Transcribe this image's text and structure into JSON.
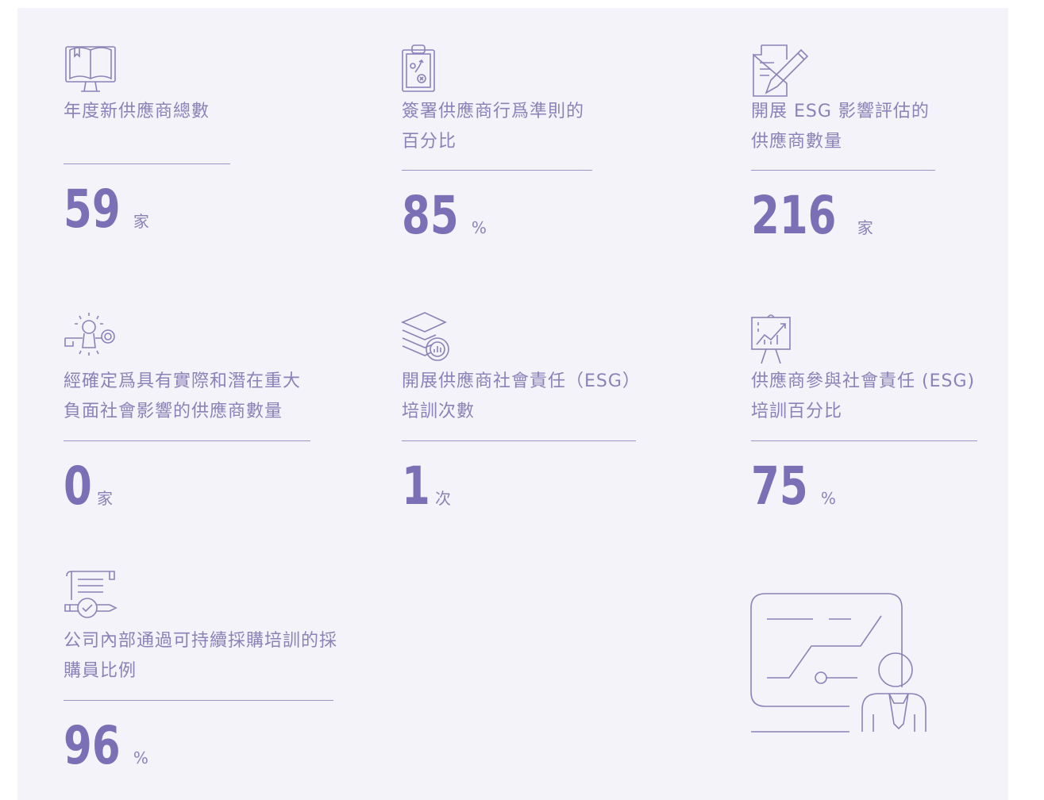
{
  "items": [
    {
      "label": [
        "年度新供應商總數"
      ],
      "value": 59,
      "unit": "家"
    },
    {
      "label": [
        "簽署供應商行爲準則的",
        "百分比"
      ],
      "value": 85,
      "unit": "%"
    },
    {
      "label": [
        "開展 ESG 影響評估的",
        "供應商數量"
      ],
      "value": 216,
      "unit": "家"
    },
    {
      "label": [
        "經確定爲具有實際和潛在重大",
        "負面社會影響的供應商數量"
      ],
      "value": 0,
      "unit": "家"
    },
    {
      "label": [
        "開展供應商社會責任（ESG）",
        "培訓次數"
      ],
      "value": 1,
      "unit": "次"
    },
    {
      "label": [
        "供應商參與社會責任 (ESG)",
        "培訓百分比"
      ],
      "value": 75,
      "unit": "%"
    },
    {
      "label": [
        "公司內部通過可持續採購培訓的採",
        "購員比例"
      ],
      "value": 96,
      "unit": "%"
    }
  ]
}
